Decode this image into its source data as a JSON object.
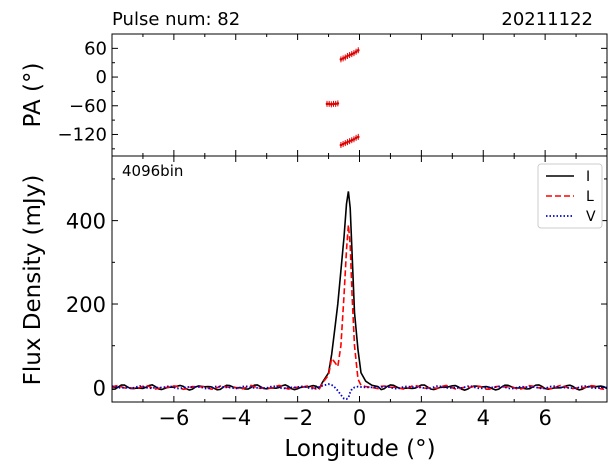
{
  "header": {
    "pulse_label": "Pulse num: 82",
    "date_label": "20211122"
  },
  "chart_data": [
    {
      "type": "scatter",
      "title": "Pulse num: 82",
      "ylabel": "PA (°)",
      "xlim": [
        -8.0,
        8.0
      ],
      "ylim": [
        -165,
        90
      ],
      "yticks": [
        60,
        0,
        -60,
        -120
      ],
      "ytick_labels": [
        "60",
        "0",
        "−60",
        "−120"
      ],
      "marker_color": "#dd0000",
      "series": [
        {
          "name": "PA upper branch",
          "x": [
            -0.6,
            -0.53,
            -0.46,
            -0.39,
            -0.32,
            -0.25,
            -0.18,
            -0.11,
            -0.04
          ],
          "y": [
            37,
            39,
            41,
            44,
            46,
            48,
            50,
            53,
            56
          ]
        },
        {
          "name": "PA middle branch",
          "x": [
            -1.05,
            -0.98,
            -0.91,
            -0.84,
            -0.77,
            -0.7
          ],
          "y": [
            -56,
            -56,
            -57,
            -56,
            -56,
            -55
          ]
        },
        {
          "name": "PA lower branch",
          "x": [
            -0.6,
            -0.53,
            -0.46,
            -0.39,
            -0.32,
            -0.25,
            -0.18,
            -0.11,
            -0.04
          ],
          "y": [
            -142,
            -140,
            -138,
            -136,
            -134,
            -132,
            -130,
            -127,
            -125
          ]
        }
      ]
    },
    {
      "type": "line",
      "annotation": "4096bin",
      "xlabel": "Longitude (°)",
      "ylabel": "Flux Density (mJy)",
      "xlim": [
        -8.0,
        8.0
      ],
      "ylim": [
        -35,
        555
      ],
      "xticks": [
        -6,
        -4,
        -2,
        0,
        2,
        4,
        6
      ],
      "xtick_labels": [
        "−6",
        "−4",
        "−2",
        "0",
        "2",
        "4",
        "6"
      ],
      "yticks": [
        0,
        200,
        400
      ],
      "ytick_labels": [
        "0",
        "200",
        "400"
      ],
      "legend_position": "top-right",
      "x": [
        -1.2,
        -1.0,
        -0.9,
        -0.8,
        -0.7,
        -0.6,
        -0.5,
        -0.42,
        -0.36,
        -0.3,
        -0.24,
        -0.16,
        -0.05,
        0.05,
        0.2,
        0.4,
        0.6
      ],
      "series": [
        {
          "name": "I",
          "color": "#000000",
          "dash": "solid",
          "values": [
            12,
            35,
            80,
            140,
            200,
            280,
            360,
            440,
            470,
            430,
            320,
            180,
            90,
            35,
            15,
            5,
            2
          ]
        },
        {
          "name": "L",
          "color": "#ff0000",
          "dash": "dashed",
          "values": [
            10,
            30,
            70,
            60,
            50,
            100,
            220,
            330,
            390,
            340,
            220,
            100,
            20,
            5,
            2,
            0,
            -3
          ]
        },
        {
          "name": "V",
          "color": "#0000cc",
          "dash": "dotted",
          "values": [
            4,
            8,
            6,
            0,
            -8,
            -18,
            -27,
            -28,
            -25,
            -12,
            -3,
            0,
            2,
            1,
            0,
            0,
            0
          ]
        }
      ]
    }
  ]
}
